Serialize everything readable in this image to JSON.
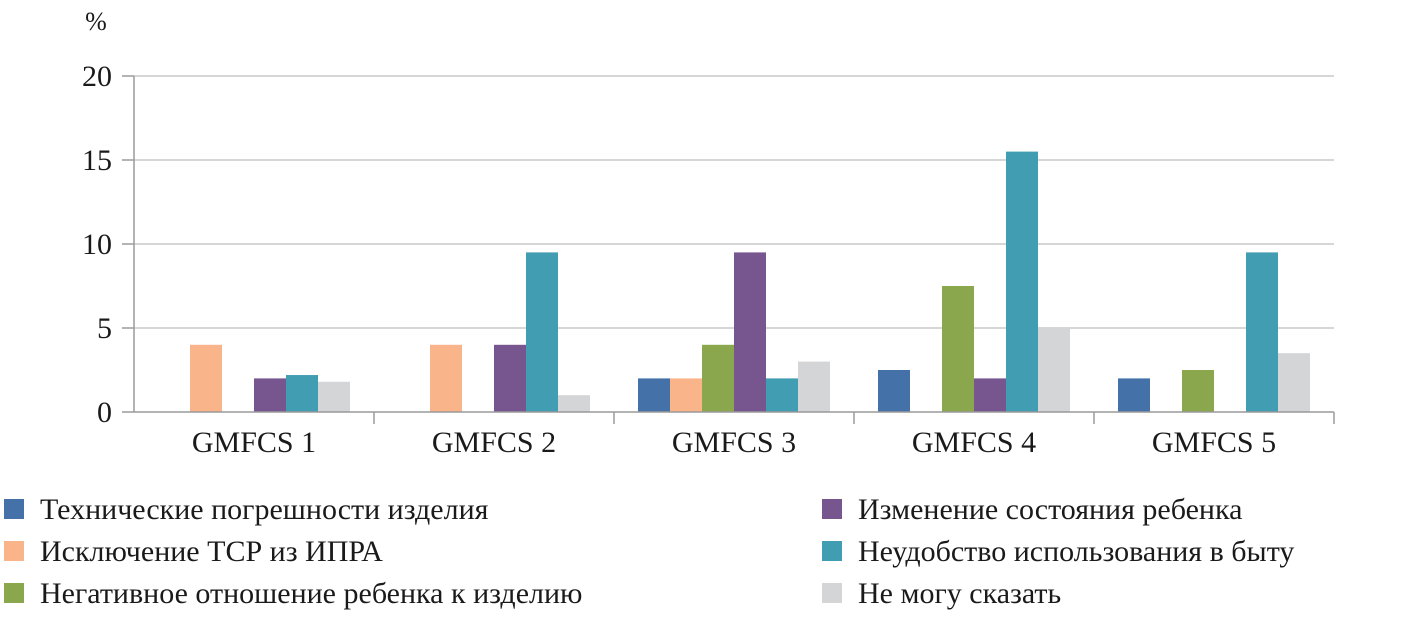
{
  "chart_data": {
    "type": "bar",
    "unit_label": "%",
    "ylim": [
      0,
      20
    ],
    "yticks": [
      0,
      5,
      10,
      15,
      20
    ],
    "grid": true,
    "legend_position": "bottom",
    "categories": [
      "GMFCS 1",
      "GMFCS 2",
      "GMFCS 3",
      "GMFCS 4",
      "GMFCS 5"
    ],
    "series": [
      {
        "name": "Технические погрешности изделия",
        "color": "#4472a8",
        "values": [
          0,
          0,
          2,
          2.5,
          2
        ]
      },
      {
        "name": "Исключение ТСР из ИПРА",
        "color": "#f9b589",
        "values": [
          4,
          4,
          2,
          0,
          0
        ]
      },
      {
        "name": "Негативное отношение ребенка к изделию",
        "color": "#8aa74e",
        "values": [
          0,
          0,
          4,
          7.5,
          2.5
        ]
      },
      {
        "name": "Изменение состояния ребенка",
        "color": "#77568f",
        "values": [
          2,
          4,
          9.5,
          2,
          0
        ]
      },
      {
        "name": "Неудобство использования в быту",
        "color": "#419db1",
        "values": [
          2.2,
          9.5,
          2,
          15.5,
          9.5
        ]
      },
      {
        "name": "Не могу сказать",
        "color": "#d4d5d7",
        "values": [
          1.8,
          1,
          3,
          5,
          3.5
        ]
      }
    ]
  }
}
